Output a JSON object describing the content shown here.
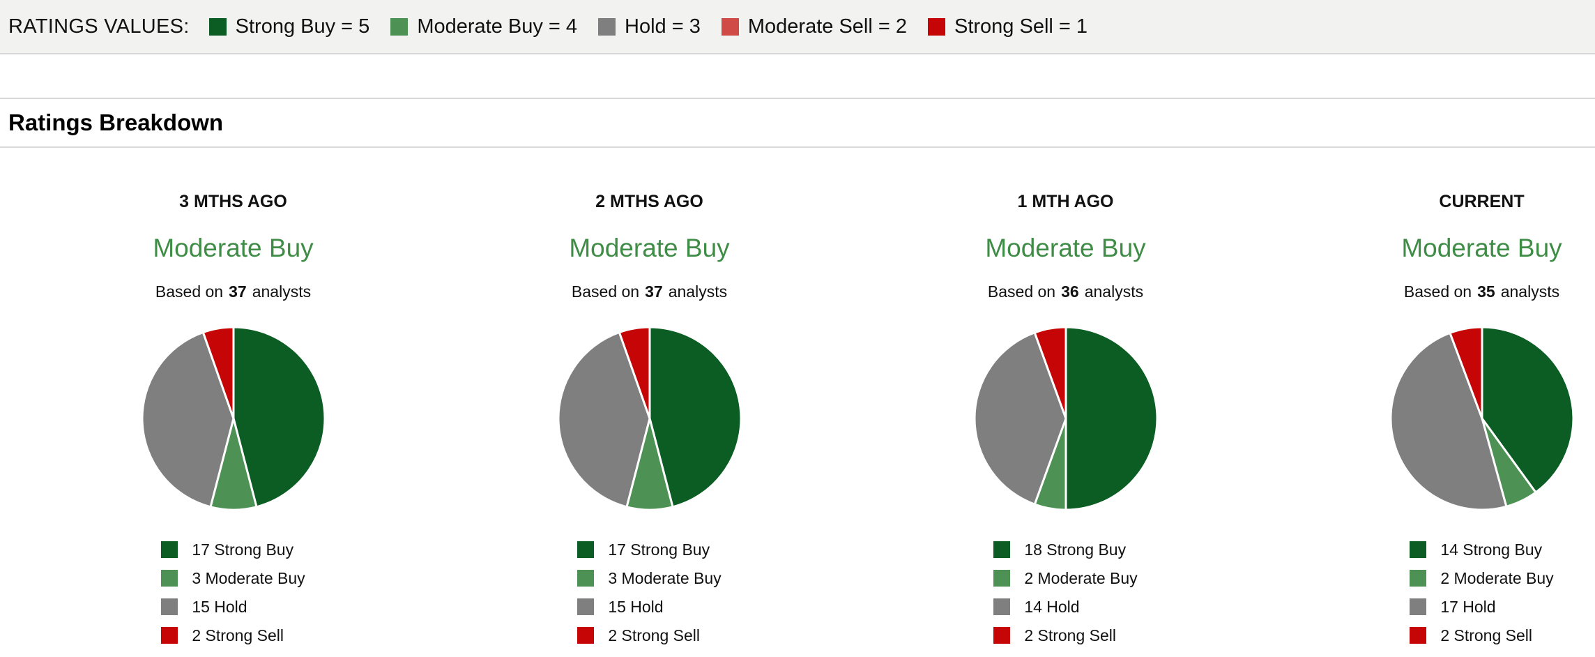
{
  "ratings_values_bar": {
    "label": "RATINGS VALUES:",
    "items": [
      {
        "name": "strong-buy",
        "label": "Strong Buy = 5",
        "color": "#0b5d23"
      },
      {
        "name": "moderate-buy",
        "label": "Moderate Buy = 4",
        "color": "#4d9254"
      },
      {
        "name": "hold",
        "label": "Hold = 3",
        "color": "#7f7f7f"
      },
      {
        "name": "moderate-sell",
        "label": "Moderate Sell = 2",
        "color": "#d04b48"
      },
      {
        "name": "strong-sell",
        "label": "Strong Sell = 1",
        "color": "#c60606"
      }
    ]
  },
  "section": {
    "title": "Ratings Breakdown"
  },
  "palette": {
    "strong_buy": "#0b5d23",
    "moderate_buy": "#4d9254",
    "hold": "#7f7f7f",
    "moderate_sell": "#d04b48",
    "strong_sell": "#c60606",
    "consensus_text": "#3f8c46",
    "pie_slice_separator": "#ffffff"
  },
  "chart_data": [
    {
      "type": "pie",
      "period": "3 MTHS AGO",
      "consensus": "Moderate Buy",
      "analysts_prefix": "Based on",
      "analysts_count": "37",
      "analysts_suffix": "analysts",
      "start_angle_deg": 0,
      "direction": "clockwise",
      "legend_position": "bottom",
      "slices": [
        {
          "label": "Strong Buy",
          "value": 17,
          "color": "#0b5d23"
        },
        {
          "label": "Moderate Buy",
          "value": 3,
          "color": "#4d9254"
        },
        {
          "label": "Hold",
          "value": 15,
          "color": "#7f7f7f"
        },
        {
          "label": "Strong Sell",
          "value": 2,
          "color": "#c60606"
        }
      ]
    },
    {
      "type": "pie",
      "period": "2 MTHS AGO",
      "consensus": "Moderate Buy",
      "analysts_prefix": "Based on",
      "analysts_count": "37",
      "analysts_suffix": "analysts",
      "start_angle_deg": 0,
      "direction": "clockwise",
      "legend_position": "bottom",
      "slices": [
        {
          "label": "Strong Buy",
          "value": 17,
          "color": "#0b5d23"
        },
        {
          "label": "Moderate Buy",
          "value": 3,
          "color": "#4d9254"
        },
        {
          "label": "Hold",
          "value": 15,
          "color": "#7f7f7f"
        },
        {
          "label": "Strong Sell",
          "value": 2,
          "color": "#c60606"
        }
      ]
    },
    {
      "type": "pie",
      "period": "1 MTH AGO",
      "consensus": "Moderate Buy",
      "analysts_prefix": "Based on",
      "analysts_count": "36",
      "analysts_suffix": "analysts",
      "start_angle_deg": 0,
      "direction": "clockwise",
      "legend_position": "bottom",
      "slices": [
        {
          "label": "Strong Buy",
          "value": 18,
          "color": "#0b5d23"
        },
        {
          "label": "Moderate Buy",
          "value": 2,
          "color": "#4d9254"
        },
        {
          "label": "Hold",
          "value": 14,
          "color": "#7f7f7f"
        },
        {
          "label": "Strong Sell",
          "value": 2,
          "color": "#c60606"
        }
      ]
    },
    {
      "type": "pie",
      "period": "CURRENT",
      "consensus": "Moderate Buy",
      "analysts_prefix": "Based on",
      "analysts_count": "35",
      "analysts_suffix": "analysts",
      "start_angle_deg": 0,
      "direction": "clockwise",
      "legend_position": "bottom",
      "slices": [
        {
          "label": "Strong Buy",
          "value": 14,
          "color": "#0b5d23"
        },
        {
          "label": "Moderate Buy",
          "value": 2,
          "color": "#4d9254"
        },
        {
          "label": "Hold",
          "value": 17,
          "color": "#7f7f7f"
        },
        {
          "label": "Strong Sell",
          "value": 2,
          "color": "#c60606"
        }
      ]
    }
  ]
}
